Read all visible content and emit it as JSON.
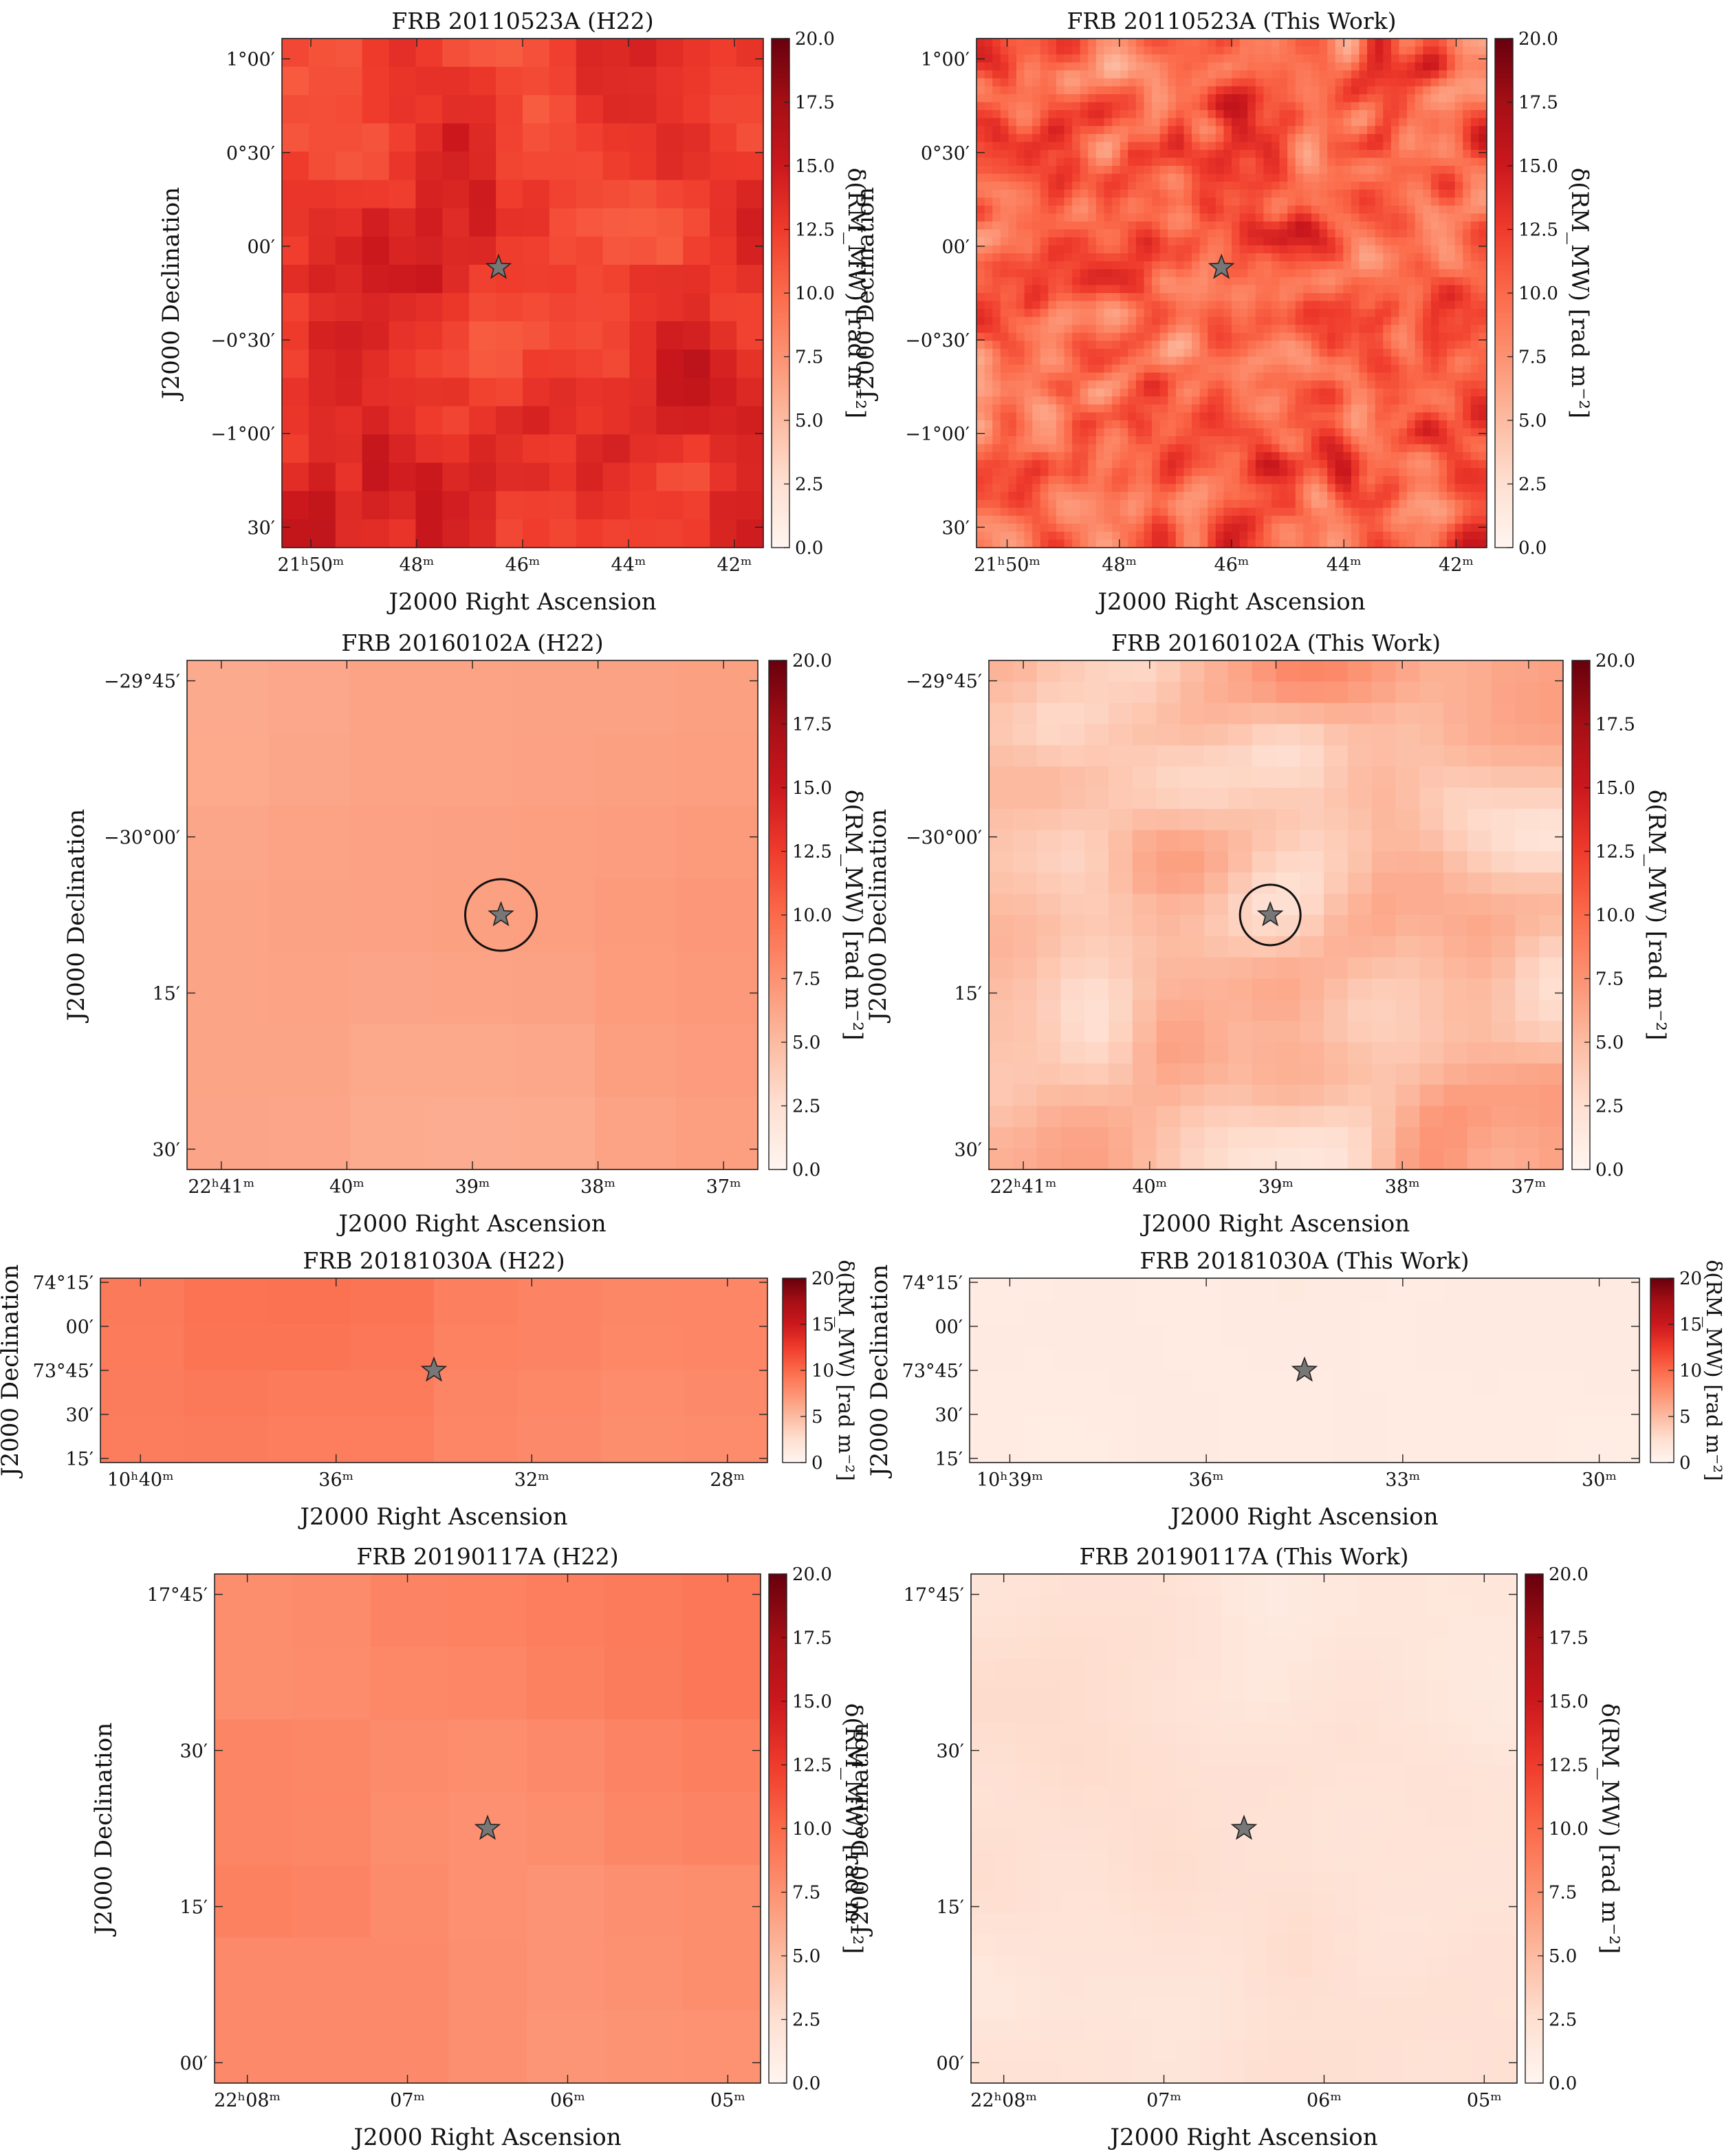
{
  "colorbar": {
    "ticks": [
      "0.0",
      "2.5",
      "5.0",
      "7.5",
      "10.0",
      "12.5",
      "15.0",
      "17.5",
      "20.0"
    ],
    "ticks_short": [
      "0",
      "5",
      "10",
      "15",
      "20"
    ],
    "label": "δ(RM_MW) [rad m⁻²]",
    "vmin": 0,
    "vmax": 20,
    "colors": [
      "#fff5f0",
      "#fee0d2",
      "#fcbba1",
      "#fc9272",
      "#fb6a4a",
      "#ef3b2c",
      "#cb181d",
      "#a50f15",
      "#67000d"
    ]
  },
  "axes_labels": {
    "xlabel": "J2000 Right Ascension",
    "ylabel": "J2000 Declination"
  },
  "chart_data": [
    {
      "id": "p1",
      "type": "heatmap",
      "title": "FRB 20110523A (H22)",
      "nx": 18,
      "ny": 18,
      "base": 13.0,
      "amp": 3.0,
      "seed": 11,
      "smooth": 0.25,
      "marker": true,
      "circle": false,
      "xticks": [
        "21ʰ50ᵐ",
        "48ᵐ",
        "46ᵐ",
        "44ᵐ",
        "42ᵐ"
      ],
      "yticks": [
        "1°00′",
        "0°30′",
        "00′",
        "−0°30′",
        "−1°00′",
        "30′"
      ]
    },
    {
      "id": "p2",
      "type": "heatmap",
      "title": "FRB 20110523A (This Work)",
      "nx": 64,
      "ny": 64,
      "base": 10.5,
      "amp": 5.5,
      "seed": 23,
      "smooth": 0.7,
      "marker": true,
      "circle": false,
      "xticks": [
        "21ʰ50ᵐ",
        "48ᵐ",
        "46ᵐ",
        "44ᵐ",
        "42ᵐ"
      ],
      "yticks": [
        "1°00′",
        "0°30′",
        "00′",
        "−0°30′",
        "−1°00′",
        "30′"
      ]
    },
    {
      "id": "p3",
      "type": "heatmap",
      "title": "FRB 20160102A (H22)",
      "nx": 7,
      "ny": 7,
      "base": 6.6,
      "amp": 0.7,
      "seed": 5,
      "smooth": 0.4,
      "marker": true,
      "circle": true,
      "xticks": [
        "22ʰ41ᵐ",
        "40ᵐ",
        "39ᵐ",
        "38ᵐ",
        "37ᵐ"
      ],
      "yticks": [
        "−29°45′",
        "−30°00′",
        "15′",
        "30′"
      ]
    },
    {
      "id": "p4",
      "type": "heatmap",
      "title": "FRB 20160102A (This Work)",
      "nx": 24,
      "ny": 24,
      "base": 4.8,
      "amp": 3.4,
      "seed": 41,
      "smooth": 0.8,
      "marker": true,
      "circle": true,
      "xticks": [
        "22ʰ41ᵐ",
        "40ᵐ",
        "39ᵐ",
        "38ᵐ",
        "37ᵐ"
      ],
      "yticks": [
        "−29°45′",
        "−30°00′",
        "15′",
        "30′"
      ]
    },
    {
      "id": "p5",
      "type": "heatmap",
      "title": "FRB 20181030A (H22)",
      "nx": 8,
      "ny": 4,
      "base": 8.4,
      "amp": 1.1,
      "seed": 7,
      "smooth": 0.4,
      "marker": true,
      "circle": false,
      "xticks": [
        "10ʰ40ᵐ",
        "36ᵐ",
        "32ᵐ",
        "28ᵐ"
      ],
      "yticks": [
        "74°15′",
        "00′",
        "73°45′",
        "30′",
        "15′"
      ]
    },
    {
      "id": "p6",
      "type": "heatmap",
      "title": "FRB 20181030A (This Work)",
      "nx": 24,
      "ny": 8,
      "base": 1.3,
      "amp": 0.3,
      "seed": 9,
      "smooth": 0.9,
      "marker": true,
      "circle": false,
      "xticks": [
        "10ʰ39ᵐ",
        "36ᵐ",
        "33ᵐ",
        "30ᵐ"
      ],
      "yticks": [
        "74°15′",
        "00′",
        "73°45′",
        "30′",
        "15′"
      ]
    },
    {
      "id": "p7",
      "type": "heatmap",
      "title": "FRB 20190117A (H22)",
      "nx": 7,
      "ny": 7,
      "base": 8.2,
      "amp": 1.0,
      "seed": 3,
      "smooth": 0.4,
      "marker": true,
      "circle": false,
      "xticks": [
        "22ʰ08ᵐ",
        "07ᵐ",
        "06ᵐ",
        "05ᵐ"
      ],
      "yticks": [
        "17°45′",
        "30′",
        "15′",
        "00′"
      ]
    },
    {
      "id": "p8",
      "type": "heatmap",
      "title": "FRB 20190117A (This Work)",
      "nx": 24,
      "ny": 24,
      "base": 2.2,
      "amp": 0.9,
      "seed": 17,
      "smooth": 0.9,
      "marker": true,
      "circle": false,
      "xticks": [
        "22ʰ08ᵐ",
        "07ᵐ",
        "06ᵐ",
        "05ᵐ"
      ],
      "yticks": [
        "17°45′",
        "30′",
        "15′",
        "00′"
      ]
    }
  ]
}
